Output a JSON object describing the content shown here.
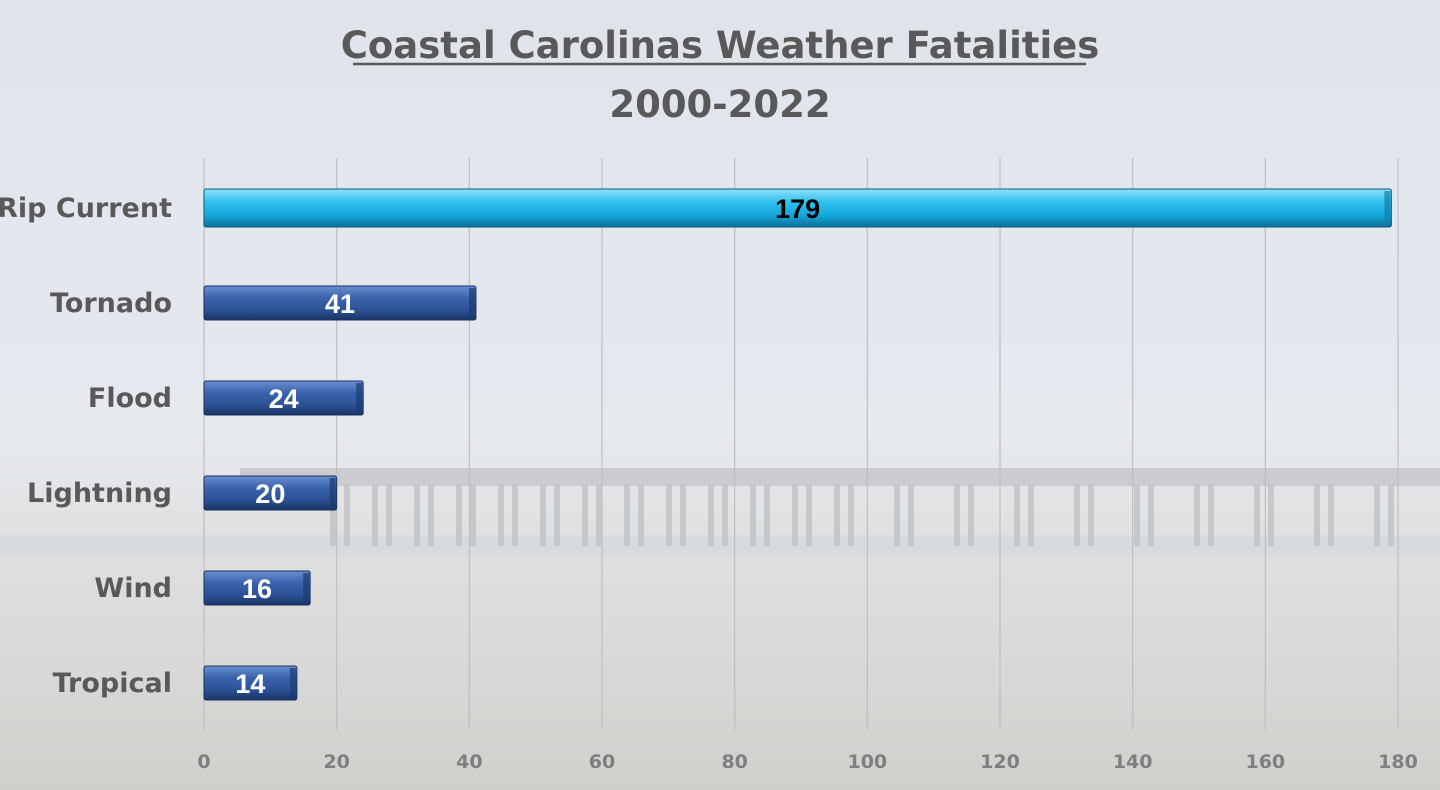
{
  "chart_data": {
    "type": "bar",
    "orientation": "horizontal",
    "title": "Coastal Carolinas Weather Fatalities",
    "subtitle": "2000-2022",
    "categories": [
      "Rip Current",
      "Tornado",
      "Flood",
      "Lightning",
      "Wind",
      "Tropical"
    ],
    "values": [
      179,
      41,
      24,
      20,
      16,
      14
    ],
    "data_labels": [
      "179",
      "41",
      "24",
      "20",
      "16",
      "14"
    ],
    "xlabel": "",
    "ylabel": "",
    "xlim": [
      0,
      180
    ],
    "xticks": [
      0,
      20,
      40,
      60,
      80,
      100,
      120,
      140,
      160,
      180
    ],
    "xtick_labels": [
      "0",
      "20",
      "40",
      "60",
      "80",
      "100",
      "120",
      "140",
      "160",
      "180"
    ],
    "grid": "vertical",
    "legend": "none",
    "colors": {
      "highlight_bar": "#1fb4e6",
      "bar": "#2f5597",
      "highlight_label": "#000000",
      "label": "#ffffff"
    },
    "highlight_index": 0
  }
}
